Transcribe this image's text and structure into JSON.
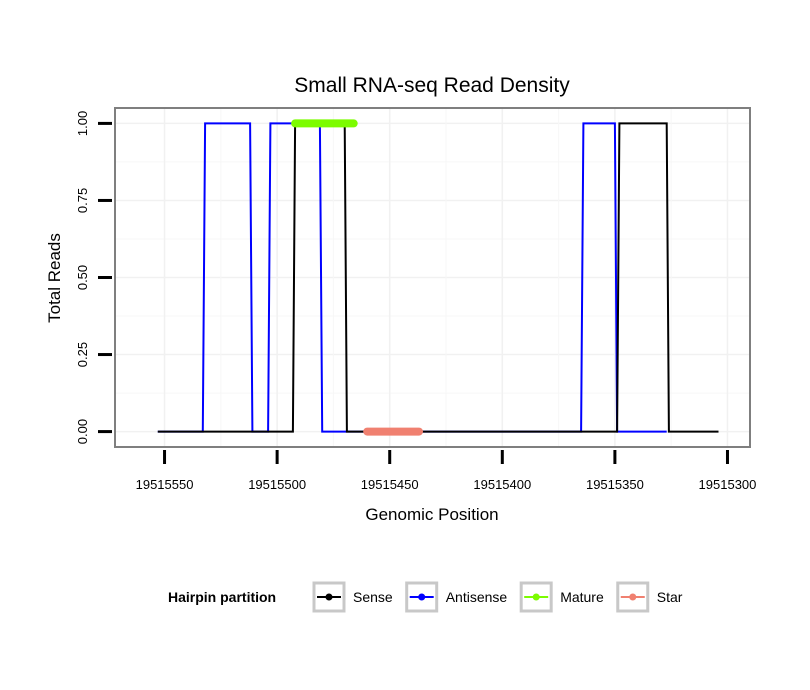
{
  "chart_data": {
    "type": "line",
    "title": "Small RNA-seq Read Density",
    "xlabel": "Genomic Position",
    "ylabel": "Total Reads",
    "x_reversed": true,
    "xlim": [
      19515572,
      19515290
    ],
    "ylim": [
      -0.05,
      1.05
    ],
    "x_ticks": [
      19515550,
      19515500,
      19515450,
      19515400,
      19515350,
      19515300
    ],
    "x_tick_labels": [
      "19515550",
      "19515500",
      "19515450",
      "19515400",
      "19515350",
      "19515300"
    ],
    "y_ticks": [
      0,
      0.25,
      0.5,
      0.75,
      1.0
    ],
    "y_tick_labels": [
      "0.00",
      "0.25",
      "0.50",
      "0.75",
      "1.00"
    ],
    "grid": true,
    "legend": {
      "title": "Hairpin partition",
      "position": "bottom",
      "entries": [
        {
          "label": "Sense",
          "color": "#000000"
        },
        {
          "label": "Antisense",
          "color": "#0000ff"
        },
        {
          "label": "Mature",
          "color": "#7cfc00"
        },
        {
          "label": "Star",
          "color": "#f08070"
        }
      ]
    },
    "series": [
      {
        "name": "Antisense",
        "color": "#0000ff",
        "x": [
          19515553,
          19515533,
          19515532,
          19515512,
          19515511,
          19515504,
          19515503,
          19515481,
          19515480,
          19515470,
          19515468,
          19515365,
          19515364,
          19515350,
          19515349,
          19515342,
          19515341,
          19515327
        ],
        "y": [
          0,
          0,
          1,
          1,
          0,
          0,
          1,
          1,
          0,
          0,
          0,
          0,
          1,
          1,
          0,
          0,
          0,
          0
        ]
      },
      {
        "name": "Sense",
        "color": "#000000",
        "x": [
          19515553,
          19515493,
          19515492,
          19515470,
          19515469,
          19515349,
          19515348,
          19515327,
          19515326,
          19515304
        ],
        "y": [
          0,
          0,
          1,
          1,
          0,
          0,
          1,
          1,
          0,
          0
        ]
      },
      {
        "name": "Mature",
        "color": "#7cfc00",
        "x": [
          19515492,
          19515466
        ],
        "y": [
          1,
          1
        ]
      },
      {
        "name": "Star",
        "color": "#f08070",
        "x": [
          19515460,
          19515437
        ],
        "y": [
          0,
          0
        ]
      }
    ]
  }
}
